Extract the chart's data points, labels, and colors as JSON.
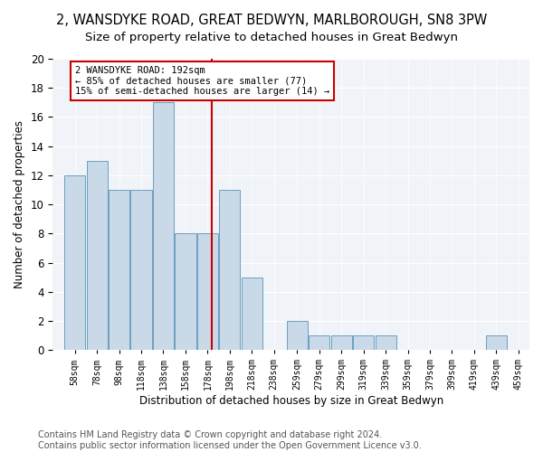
{
  "title": "2, WANSDYKE ROAD, GREAT BEDWYN, MARLBOROUGH, SN8 3PW",
  "subtitle": "Size of property relative to detached houses in Great Bedwyn",
  "xlabel": "Distribution of detached houses by size in Great Bedwyn",
  "ylabel": "Number of detached properties",
  "footnote1": "Contains HM Land Registry data © Crown copyright and database right 2024.",
  "footnote2": "Contains public sector information licensed under the Open Government Licence v3.0.",
  "bar_edges": [
    58,
    78,
    98,
    118,
    138,
    158,
    178,
    198,
    218,
    238,
    259,
    279,
    299,
    319,
    339,
    359,
    379,
    399,
    419,
    439,
    459,
    479
  ],
  "bar_heights": [
    12,
    13,
    11,
    11,
    17,
    8,
    8,
    11,
    5,
    0,
    2,
    1,
    1,
    1,
    1,
    0,
    0,
    0,
    0,
    1,
    0
  ],
  "bar_color": "#c9d9e8",
  "bar_edge_color": "#6a9fc0",
  "ref_line_x": 192,
  "ref_line_color": "#cc0000",
  "annotation_text": "2 WANSDYKE ROAD: 192sqm\n← 85% of detached houses are smaller (77)\n15% of semi-detached houses are larger (14) →",
  "annotation_box_color": "#cc0000",
  "ylim": [
    0,
    20
  ],
  "xlim": [
    48,
    479
  ],
  "tick_labels": [
    "58sqm",
    "78sqm",
    "98sqm",
    "118sqm",
    "138sqm",
    "158sqm",
    "178sqm",
    "198sqm",
    "218sqm",
    "238sqm",
    "259sqm",
    "279sqm",
    "299sqm",
    "319sqm",
    "339sqm",
    "359sqm",
    "379sqm",
    "399sqm",
    "419sqm",
    "439sqm",
    "459sqm"
  ],
  "title_fontsize": 10.5,
  "subtitle_fontsize": 9.5,
  "axis_label_fontsize": 8.5,
  "tick_fontsize": 7,
  "annotation_fontsize": 7.5,
  "footnote_fontsize": 7,
  "bg_color": "#f0f4f8",
  "fig_bg_color": "#ffffff"
}
